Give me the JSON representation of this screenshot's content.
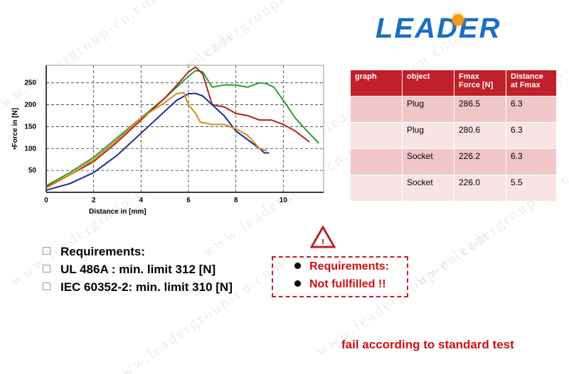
{
  "logo": "LEADER",
  "watermark": "www.leadergroup-cn.com",
  "chart_data": {
    "type": "line",
    "ylabel": "•Force in [N]",
    "xlabel": "Distance in [mm]",
    "xlim": [
      0,
      11.7
    ],
    "ylim": [
      0,
      290
    ],
    "xticks": [
      0,
      2,
      4,
      6,
      8,
      10
    ],
    "yticks": [
      50,
      100,
      150,
      200,
      250
    ],
    "grid": true,
    "series": [
      {
        "color": "#2e9e2e",
        "x": [
          0,
          1,
          2,
          3,
          4,
          5,
          5.6,
          6,
          6.3,
          6.6,
          7,
          7.5,
          8,
          8.5,
          9,
          9.3,
          9.6,
          10,
          10.5,
          11,
          11.5
        ],
        "values": [
          15,
          45,
          80,
          125,
          170,
          215,
          245,
          265,
          278,
          275,
          240,
          245,
          245,
          240,
          250,
          248,
          240,
          210,
          170,
          140,
          112
        ]
      },
      {
        "color": "#b22222",
        "x": [
          0,
          1,
          2,
          3,
          4,
          5,
          5.6,
          6,
          6.3,
          6.6,
          7,
          7.5,
          8,
          8.5,
          9,
          9.5,
          10,
          10.5,
          11.1
        ],
        "values": [
          12,
          40,
          70,
          115,
          165,
          215,
          250,
          275,
          286,
          270,
          200,
          195,
          180,
          175,
          165,
          165,
          155,
          140,
          115
        ]
      },
      {
        "color": "#1c2c8c",
        "x": [
          0,
          1,
          2,
          3,
          4,
          5,
          5.5,
          6,
          6.3,
          6.6,
          7,
          7.5,
          8,
          8.5,
          9,
          9.2,
          9.4
        ],
        "values": [
          5,
          20,
          45,
          85,
          135,
          185,
          210,
          225,
          226,
          220,
          200,
          175,
          140,
          120,
          100,
          90,
          90
        ]
      },
      {
        "color": "#d98a1a",
        "x": [
          0,
          1,
          2,
          3,
          4,
          5,
          5.5,
          5.8,
          6,
          6.3,
          6.5,
          7,
          7.5,
          8,
          8.5,
          9,
          9.3
        ],
        "values": [
          10,
          40,
          75,
          120,
          170,
          205,
          225,
          228,
          200,
          180,
          160,
          155,
          155,
          145,
          130,
          100,
          95
        ]
      }
    ]
  },
  "table": {
    "headers": [
      "graph",
      "object",
      "Fmax Force [N]",
      "Distance at Fmax"
    ],
    "rows": [
      [
        "Plug",
        "286.5",
        "6.3"
      ],
      [
        "Plug",
        "280.6",
        "6.3"
      ],
      [
        "Socket",
        "226.2",
        "6.3"
      ],
      [
        "Socket",
        "226.0",
        "5.5"
      ]
    ]
  },
  "requirements": [
    "Requirements:",
    "UL 486A : min. limit 312 [N]",
    "IEC 60352-2: min. limit 310 [N]"
  ],
  "warning": [
    "Requirements:",
    "Not fullfilled !!"
  ],
  "footer": "fail according to standard test"
}
